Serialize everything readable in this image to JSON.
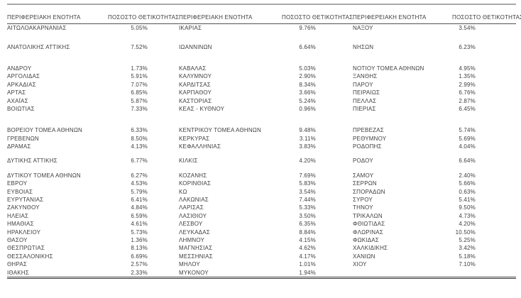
{
  "colors": {
    "text": "#404040",
    "top_rule": "#a8a8a8",
    "header_rule": "#525252",
    "bottom_rule": "#3d3d3d",
    "background": "#ffffff"
  },
  "chart_data": {
    "type": "table",
    "headers": [
      "ΠΕΡΙΦΕΡΕΙΑΚΗ ΕΝΟΤΗΤΑ",
      "ΠΟΣΟΣΤΟ ΘΕΤΙΚΟΤΗΤΑΣ",
      "ΠΕΡΙΦΕΡΕΙΑΚΗ ΕΝΟΤΗΤΑ",
      "ΠΟΣΟΣΤΟ ΘΕΤΙΚΟΤΗΤΑΣ",
      "ΠΕΡΙΦΕΡΕΙΑΚΗ ΕΝΟΤΗΤΑ",
      "ΠΟΣΟΣΤΟ ΘΕΤΙΚΟΤΗΤΑΣ"
    ],
    "rows": [
      {
        "cells": [
          "ΑΙΤΩΛΟΑΚΑΡΝΑΝΙΑΣ",
          "5.05%",
          "ΙΚΑΡΙΑΣ",
          "9.76%",
          "ΝΑΞΟΥ",
          "3.54%"
        ]
      },
      {
        "gap": "md"
      },
      {
        "cells": [
          "ΑΝΑΤΟΛΙΚΗΣ ΑΤΤΙΚΗΣ",
          "7.52%",
          "ΙΩΑΝΝΙΝΩΝ",
          "6.64%",
          "ΝΗΣΩΝ",
          "6.23%"
        ]
      },
      {
        "gap": "lg"
      },
      {
        "cells": [
          "ΑΝΔΡΟΥ",
          "1.73%",
          "ΚΑΒΑΛΑΣ",
          "5.03%",
          "ΝΟΤΙΟΥ ΤΟΜΕΑ ΑΘΗΝΩΝ",
          "4.95%"
        ]
      },
      {
        "cells": [
          "ΑΡΓΟΛΙΔΑΣ",
          "5.91%",
          "ΚΑΛΥΜΝΟΥ",
          "2.90%",
          "ΞΑΝΘΗΣ",
          "1.35%"
        ]
      },
      {
        "cells": [
          "ΑΡΚΑΔΙΑΣ",
          "7.07%",
          "ΚΑΡΔΙΤΣΑΣ",
          "8.34%",
          "ΠΑΡΟΥ",
          "2.99%"
        ]
      },
      {
        "cells": [
          "ΑΡΤΑΣ",
          "6.85%",
          "ΚΑΡΠΑΘΟΥ",
          "3.66%",
          "ΠΕΙΡΑΙΩΣ",
          "6.76%"
        ]
      },
      {
        "cells": [
          "ΑΧΑΪΑΣ",
          "5.87%",
          "ΚΑΣΤΟΡΙΑΣ",
          "5.24%",
          "ΠΕΛΛΑΣ",
          "2.87%"
        ]
      },
      {
        "cells": [
          "ΒΟΙΩΤΙΑΣ",
          "7.33%",
          "ΚΕΑΣ - ΚΥΘΝΟΥ",
          "0.96%",
          "ΠΙΕΡΙΑΣ",
          "6.45%"
        ]
      },
      {
        "gap": "lg"
      },
      {
        "cells": [
          "ΒΟΡΕΙΟΥ ΤΟΜΕΑ ΑΘΗΝΩΝ",
          "6.33%",
          "ΚΕΝΤΡΙΚΟΥ ΤΟΜΕΑ ΑΘΗΝΩΝ",
          "9.48%",
          "ΠΡΕΒΕΖΑΣ",
          "5.74%"
        ]
      },
      {
        "cells": [
          "ΓΡΕΒΕΝΩΝ",
          "8.50%",
          "ΚΕΡΚΥΡΑΣ",
          "3.11%",
          "ΡΕΘΥΜΝΟΥ",
          "5.69%"
        ]
      },
      {
        "cells": [
          "ΔΡΑΜΑΣ",
          "4.13%",
          "ΚΕΦΑΛΛΗΝΙΑΣ",
          "3.83%",
          "ΡΟΔΟΠΗΣ",
          "4.04%"
        ]
      },
      {
        "gap": "sm"
      },
      {
        "cells": [
          "ΔΥΤΙΚΗΣ ΑΤΤΙΚΗΣ",
          "6.77%",
          "ΚΙΛΚΙΣ",
          "4.20%",
          "ΡΟΔΟΥ",
          "6.64%"
        ]
      },
      {
        "gap": "sm"
      },
      {
        "cells": [
          "ΔΥΤΙΚΟΥ ΤΟΜΕΑ ΑΘΗΝΩΝ",
          "6.27%",
          "ΚΟΖΑΝΗΣ",
          "7.69%",
          "ΣΑΜΟΥ",
          "2.40%"
        ]
      },
      {
        "cells": [
          "ΕΒΡΟΥ",
          "4.53%",
          "ΚΟΡΙΝΘΙΑΣ",
          "5.83%",
          "ΣΕΡΡΩΝ",
          "5.66%"
        ]
      },
      {
        "cells": [
          "ΕΥΒΟΙΑΣ",
          "5.79%",
          "ΚΩ",
          "3.54%",
          "ΣΠΟΡΑΔΩΝ",
          "0.63%"
        ]
      },
      {
        "cells": [
          "ΕΥΡΥΤΑΝΙΑΣ",
          "6.41%",
          "ΛΑΚΩΝΙΑΣ",
          "7.44%",
          "ΣΥΡΟΥ",
          "5.41%"
        ]
      },
      {
        "cells": [
          "ΖΑΚΥΝΘΟΥ",
          "4.84%",
          "ΛΑΡΙΣΑΣ",
          "5.33%",
          "ΤΗΝΟΥ",
          "9.50%"
        ]
      },
      {
        "cells": [
          "ΗΛΕΙΑΣ",
          "6.59%",
          "ΛΑΣΙΘΙΟΥ",
          "3.50%",
          "ΤΡΙΚΑΛΩΝ",
          "4.73%"
        ]
      },
      {
        "cells": [
          "ΗΜΑΘΙΑΣ",
          "4.61%",
          "ΛΕΣΒΟΥ",
          "6.35%",
          "ΦΘΙΩΤΙΔΑΣ",
          "4.20%"
        ]
      },
      {
        "cells": [
          "ΗΡΑΚΛΕΙΟΥ",
          "5.73%",
          "ΛΕΥΚΑΔΑΣ",
          "8.84%",
          "ΦΛΩΡΙΝΑΣ",
          "10.50%"
        ]
      },
      {
        "cells": [
          "ΘΑΣΟΥ",
          "1.36%",
          "ΛΗΜΝΟΥ",
          "4.15%",
          "ΦΩΚΙΔΑΣ",
          "5.25%"
        ]
      },
      {
        "cells": [
          "ΘΕΣΠΡΩΤΙΑΣ",
          "8.13%",
          "ΜΑΓΝΗΣΙΑΣ",
          "4.62%",
          "ΧΑΛΚΙΔΙΚΗΣ",
          "3.42%"
        ]
      },
      {
        "cells": [
          "ΘΕΣΣΑΛΟΝΙΚΗΣ",
          "6.69%",
          "ΜΕΣΣΗΝΙΑΣ",
          "4.17%",
          "ΧΑΝΙΩΝ",
          "5.18%"
        ]
      },
      {
        "cells": [
          "ΘΗΡΑΣ",
          "2.57%",
          "ΜΗΛΟΥ",
          "1.01%",
          "ΧΙΟΥ",
          "7.10%"
        ]
      },
      {
        "cells": [
          "ΙΘΑΚΗΣ",
          "2.33%",
          "ΜΥΚΟΝΟΥ",
          "1.94%",
          "",
          ""
        ]
      }
    ]
  }
}
